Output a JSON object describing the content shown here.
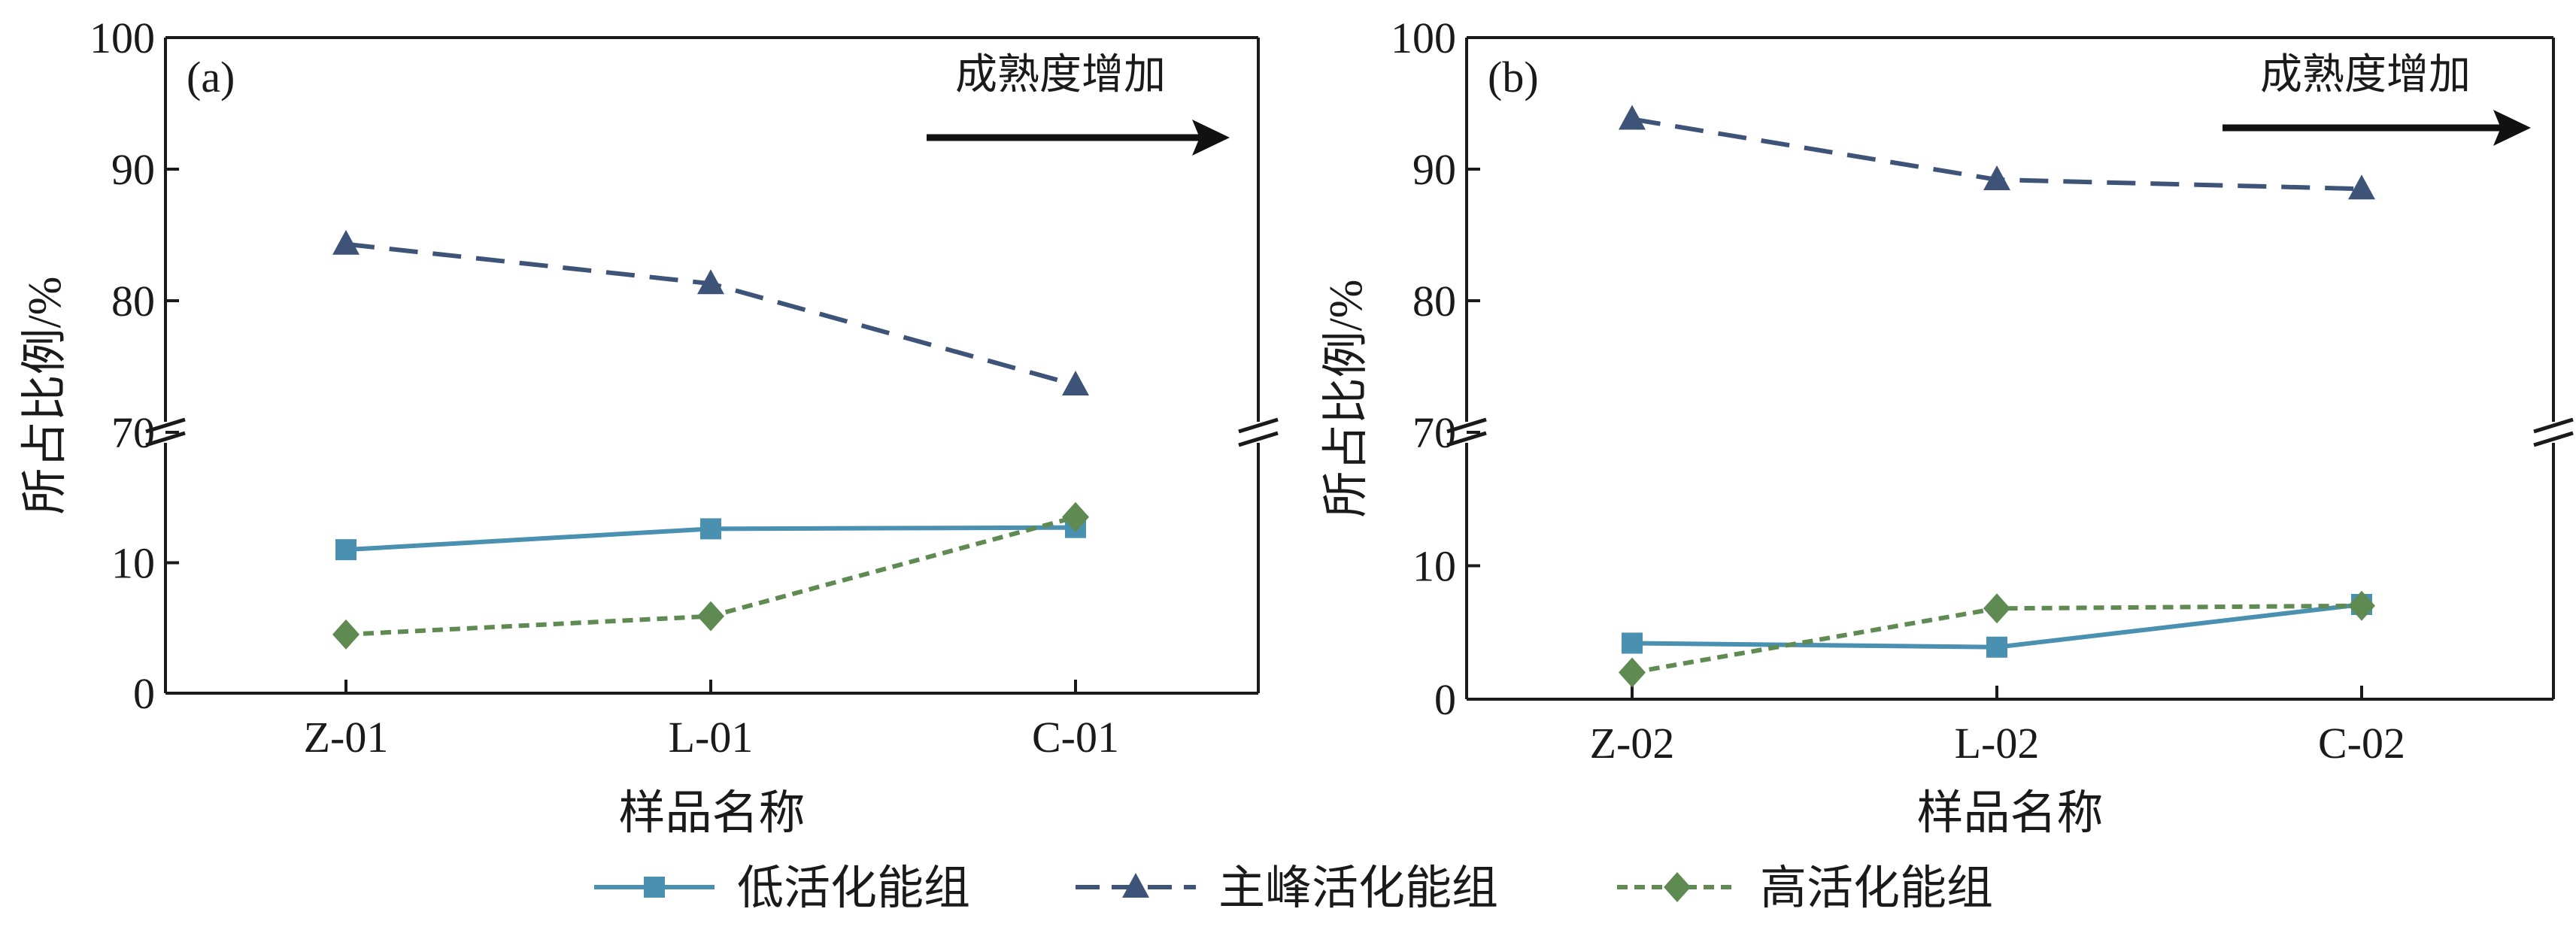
{
  "chart_data": [
    {
      "type": "line",
      "panel_label": "(a)",
      "categories": [
        "Z-01",
        "L-01",
        "C-01"
      ],
      "xlabel": "样品名称",
      "ylabel": "所占比例/%",
      "y_upper_ticks": [
        70,
        80,
        90,
        100
      ],
      "y_lower_ticks": [
        0,
        10
      ],
      "y_upper_range": [
        70,
        100
      ],
      "y_lower_range": [
        0,
        20
      ],
      "annotation": "成熟度增加",
      "series": [
        {
          "name": "低活化能组",
          "values": [
            11.0,
            12.6,
            12.7
          ],
          "color": "#4a90b0",
          "marker": "square",
          "dash": "solid"
        },
        {
          "name": "主峰活化能组",
          "values": [
            84.3,
            81.3,
            73.6
          ],
          "color": "#3d5478",
          "marker": "triangle",
          "dash": "long"
        },
        {
          "name": "高活化能组",
          "values": [
            4.5,
            5.9,
            13.5
          ],
          "color": "#5f8a52",
          "marker": "diamond",
          "dash": "short"
        }
      ]
    },
    {
      "type": "line",
      "panel_label": "(b)",
      "categories": [
        "Z-02",
        "L-02",
        "C-02"
      ],
      "xlabel": "样品名称",
      "ylabel": "所占比例/%",
      "y_upper_ticks": [
        70,
        80,
        90,
        100
      ],
      "y_lower_ticks": [
        0,
        10
      ],
      "y_upper_range": [
        70,
        100
      ],
      "y_lower_range": [
        0,
        20
      ],
      "annotation": "成熟度增加",
      "series": [
        {
          "name": "低活化能组",
          "values": [
            4.2,
            3.9,
            7.1
          ],
          "color": "#4a90b0",
          "marker": "square",
          "dash": "solid"
        },
        {
          "name": "主峰活化能组",
          "values": [
            93.8,
            89.2,
            88.5
          ],
          "color": "#3d5478",
          "marker": "triangle",
          "dash": "long"
        },
        {
          "name": "高活化能组",
          "values": [
            2.0,
            6.8,
            7.0
          ],
          "color": "#5f8a52",
          "marker": "diamond",
          "dash": "short"
        }
      ]
    }
  ],
  "legend": {
    "placement": "bottom-center",
    "items": [
      {
        "label": "低活化能组",
        "color": "#4a90b0",
        "marker": "square",
        "dash": "solid"
      },
      {
        "label": "主峰活化能组",
        "color": "#3d5478",
        "marker": "triangle",
        "dash": "long"
      },
      {
        "label": "高活化能组",
        "color": "#5f8a52",
        "marker": "diamond",
        "dash": "short"
      }
    ]
  }
}
